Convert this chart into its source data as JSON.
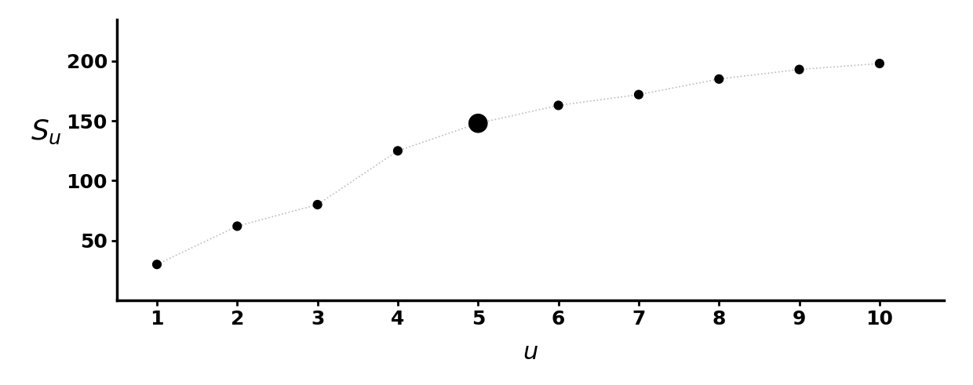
{
  "x": [
    1,
    2,
    3,
    4,
    5,
    6,
    7,
    8,
    9,
    10
  ],
  "y": [
    30,
    62,
    80,
    125,
    148,
    163,
    172,
    185,
    193,
    198
  ],
  "point_sizes": [
    60,
    60,
    60,
    60,
    280,
    60,
    60,
    60,
    60,
    60
  ],
  "point_color": "#000000",
  "line_color": "#bbbbbb",
  "xlabel": "$\\mathit{u}$",
  "ylabel": "$\\mathit{S_u}$",
  "xlim": [
    0.5,
    10.8
  ],
  "ylim": [
    0,
    235
  ],
  "xticks": [
    1,
    2,
    3,
    4,
    5,
    6,
    7,
    8,
    9,
    10
  ],
  "yticks": [
    50,
    100,
    150,
    200
  ],
  "xlabel_fontsize": 22,
  "ylabel_fontsize": 26,
  "tick_fontsize": 18,
  "tick_fontweight": "bold",
  "spine_linewidth": 2.5,
  "background_color": "#ffffff"
}
